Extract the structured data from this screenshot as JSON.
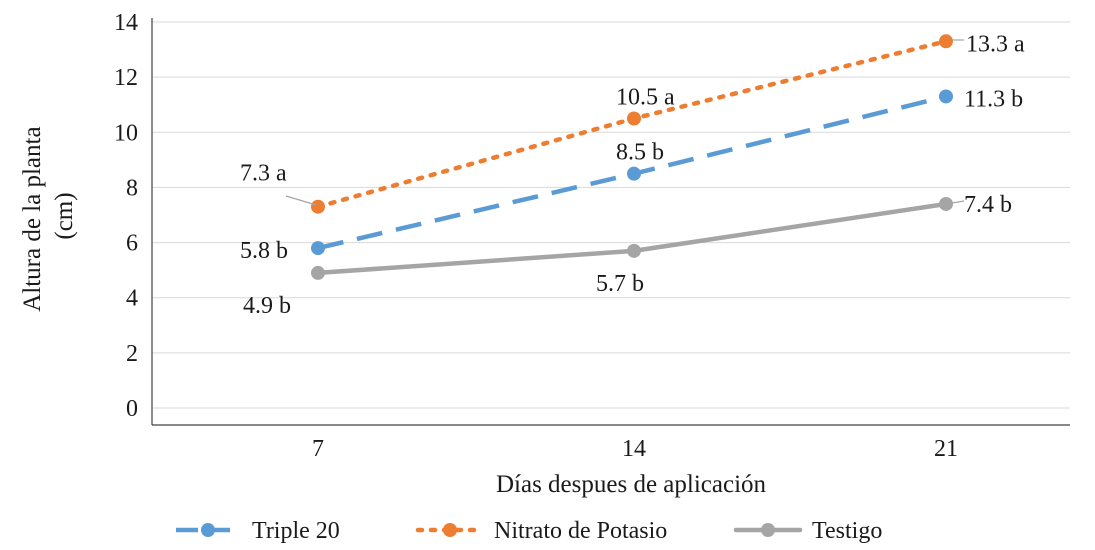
{
  "chart_data": {
    "type": "line",
    "title": "",
    "xlabel": "Días despues de aplicación",
    "ylabel": [
      "Altura de la planta",
      "(cm)"
    ],
    "categories": [
      "7",
      "14",
      "21"
    ],
    "ylim": [
      0,
      14
    ],
    "yticks": [
      0,
      2,
      4,
      6,
      8,
      10,
      12,
      14
    ],
    "grid": "horizontal",
    "legend_position": "bottom",
    "series": [
      {
        "name": "Triple 20",
        "color": "#5B9BD5",
        "line_style": "dashed",
        "marker": "circle",
        "values": [
          5.8,
          8.5,
          11.3
        ],
        "labels": [
          "5.8 b",
          "8.5 b",
          "11.3 b"
        ]
      },
      {
        "name": "Nitrato de Potasio",
        "color": "#ED7D31",
        "line_style": "dotted",
        "marker": "circle",
        "values": [
          7.3,
          10.5,
          13.3
        ],
        "labels": [
          "7.3 a",
          "10.5 a",
          "13.3 a"
        ]
      },
      {
        "name": "Testigo",
        "color": "#A5A5A5",
        "line_style": "solid",
        "marker": "circle",
        "values": [
          4.9,
          5.7,
          7.4
        ],
        "labels": [
          "4.9 b",
          "5.7 b",
          "7.4 b"
        ]
      }
    ]
  }
}
